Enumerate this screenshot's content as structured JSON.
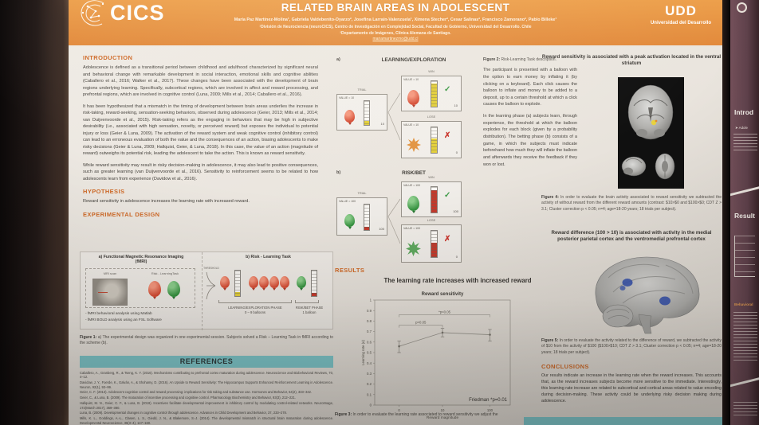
{
  "header": {
    "logo_text": "CICS",
    "title": "RELATED BRAIN AREAS IN ADOLESCENT",
    "authors": "María Paz Martínez-Molina¹, Gabriela Valdebenito-Oyarzo², Josefina Larraín-Valenzuela¹, Ximena Stecher², Cesar Salinas², Francisco Zamorano², Pablo Billeke¹",
    "affiliation1": "¹División de Neurociencia (neuroCICS), Centro de Investigación en Complejidad Social, Facultad de Gobierno, Universidad del Desarrollo. Chile",
    "affiliation2": "²Departamento de Imágenes, Clínica Alemana de Santiago.",
    "email": "mariamartinezmo@udd.cl",
    "university_acronym": "UDD",
    "university_name": "Universidad del Desarrollo"
  },
  "introduction": {
    "heading": "INTRODUCTION",
    "p1": "Adolescence is defined as a transitional period between childhood and adulthood characterized by significant neural and behavioral change with remarkable development in social interaction, emotional skills and cognitive abilities (Caballero et al., 2016; Walker et al., 2017). These changes have been associated with the development of brain regions underlying learning. Specifically, subcortical regions, which are involved in affect and reward processing, and prefrontal regions, which are involved in cognitive control (Luna, 2009; Mills et al., 2014; Caballero et al., 2016).",
    "p2": "It has been hypothesized that a mismatch in the timing of development between brain areas underlies the increase in risk-taking, reward-seeking, sensation-seeking behaviors, observed during adolescence (Geier, 2013; Mills et al., 2014; van Duijvenvoorde et al., 2015). Risk-taking refers as the engaging in behaviors that may be high in subjective desirability (i.e., associated with high sensation, novelty, or perceived reward) but exposes the individual to potential injury or loss (Geier & Luna, 2009). The activation of the reward system and weak cognitive control (inhibitory control) can lead to an erroneous evaluation of both the value and the consequences of an action, biasing adolescents to make risky decisions (Geier & Luna, 2009; Hallquist, Geier, & Luna, 2018). In this case, the value of an action (magnitude of reward) outweighs its potential risk, leading the adolescent to take the action. This is known as reward sensitivity.",
    "p3": "While reward sensitivity may result in risky decision-making in adolescence, it may also lead to positive consequences, such as greater learning (van Duijvenvoorde et al., 2016). Sensitivity to reinforcement seems to be related to how adolescents learn from experience (Davidow et al., 2016)."
  },
  "hypothesis": {
    "heading": "HYPOTHESIS",
    "text": "Reward sensitivity in adolescence increases the learning rate with increased reward."
  },
  "experimental_design": {
    "heading": "EXPERIMENTAL DESIGN",
    "panel_a_label": "a)",
    "panel_a_title": "Functional Magnetic Resonance Imaging",
    "panel_a_subtitle": "(fMRI)",
    "mri_label": "MRI scan",
    "task_label": "Risk - LearningTask",
    "bullet1": "- fMRI behavioral analysis using Matlab",
    "bullet2": "- fMRI BOLD analysis using an FSL Software",
    "panel_b_label": "b)",
    "panel_b_title": "Risk - Learning Task",
    "threshold_label": "THRESHOLD",
    "phase1_label": "LEARNING/EXPLORATION PHASE",
    "phase1_sub": "0 – 9 balloons",
    "phase2_label": "RISK/BET PHASE",
    "phase2_sub": "1 balloon",
    "figure1_prefix": "Figure 1:",
    "figure1_caption": "a) The experimental design was organized in one experimental session. Subjects solved a Risk – Learning Task in fMRI according to the scheme (b)."
  },
  "references": {
    "heading": "REFERENCES",
    "items": [
      "Caballero, A., Granberg, R., & Tseng, K. Y. (2016). Mechanisms contributing to prefrontal cortex maturation during adolescence. Neuroscience and Biobehavioral Reviews, 70, 4–12.",
      "Davidow, J. Y., Foerde, K., Galván, A., & Shohamy, D. (2016). An Upside to Reward Sensitivity: The Hippocampus Supports Enhanced Reinforcement Learning in Adolescence. Neuron, 92(1), 93–99.",
      "Geier, C. F. (2013). Adolescent cognitive control and reward processing: implications for risk taking and substance use. Hormones and Behavior, 64(2), 333–342.",
      "Geier, C., & Luna, B. (2009). The maturation of incentive processing and cognitive control. Pharmacology Biochemistry and Behavior, 93(3), 212–221.",
      "Hallquist, M. N., Geier, C. F., & Luna, B. (2018). Incentives facilitate developmental improvement in inhibitory control by modulating control-related networks. NeuroImage, 172(March 2017), 369–380.",
      "Luna, B. (2009). Developmental changes in cognitive control through adolescence. Advances in Child Development and Behavior, 37, 233–278.",
      "Mills, K. L., Goddings, A.-L., Clasen, L. S., Giedd, J. N., & Blakemore, S.-J. (2014). The developmental mismatch in structural brain maturation during adolescence. Developmental Neuroscience, 36(3–4), 147–160.",
      "van Duijvenvoorde, A. C. K., Peters, S., Braams, B. R., & Crone, E. A. (2016). What motivates adolescents? Neural responses to rewards and their influence on adolescents' risk taking, learning, and cognitive control."
    ]
  },
  "task_figure": {
    "a_label": "a)",
    "a_title": "LEARNING/EXPLORATION",
    "b_label": "b)",
    "b_title": "RISK/BET",
    "trial_label": "TRIAL",
    "win_label": "WIN",
    "lose_label": "LOSE",
    "a_value": "VALUE =  10",
    "a_deposit": "10",
    "a_win": "10",
    "a_lose": "0",
    "b_value": "VALUE = 100",
    "b_deposit": "100",
    "b_win": "100",
    "b_lose": "0",
    "check": "✓",
    "cross": "✗"
  },
  "figure2": {
    "prefix": "Figure 2:",
    "title": "Risk-Learning Task description.",
    "p1": "The participant is presented with a balloon with the option to earn money by inflating it (by clicking on a keyboard). Each click causes the balloon to inflate and money to be added to a deposit, up to a certain threshold at which a click causes the balloon to explode.",
    "p2": "In the learning phase (a) subjects learn, through experience, the threshold at which the balloon explodes for each block (given by a probability distribution). The betting phase (b) consists of a game, in which the subjects must indicate beforehand how much they will inflate the balloon and afterwards they receive the feedback if they won or lost."
  },
  "results": {
    "heading": "RESULTS",
    "chart_headline": "The learning rate increases with increased reward",
    "figure3_prefix": "Figure 3:",
    "figure3_caption": "In order to evaluate the learning rate associated to reward sensitivity we adjust the"
  },
  "chart_data": {
    "type": "line",
    "title": "Reward sensitivity",
    "xlabel": "Reward magnitude",
    "ylabel": "Learning rate (α)",
    "categories": [
      "0",
      "10",
      "100"
    ],
    "values": [
      0.56,
      0.69,
      0.67
    ],
    "error_low": [
      0.5,
      0.65,
      0.61
    ],
    "error_high": [
      0.61,
      0.73,
      0.72
    ],
    "ylim": [
      0,
      1
    ],
    "ytick_step": 0.1,
    "grid": false,
    "legend_position": "none",
    "significance": [
      {
        "from": 0,
        "to": 1,
        "y": 0.76,
        "label": "p<0.05"
      },
      {
        "from": 0,
        "to": 2,
        "y": 0.86,
        "label": "*p<0.05"
      }
    ],
    "note": "Friedman *p=0.01"
  },
  "findings": {
    "finding1_title": "Reward sensitivity is associated with a peak activation located in the ventral striatum",
    "figure4_prefix": "Figure 4:",
    "figure4_caption": "In order to evaluate the brain activity associated to reward sensitivity we subtracted the activity of without reward from the different reward amounts (contrast: $10>$0 and $100>$0; CDT Z > 3.1; Cluster correction p < 0.05; n=4; age=18-20 years; 18 trials per subject).",
    "finding2_title": "Reward difference (100 > 10) is associated with activity in the medial posterior parietal cortex and the ventromedial prefrontal cortex",
    "figure5_prefix": "Figure 5:",
    "figure5_caption": "In order to evaluate the activity related to the difference of reward, we subtracted the activity of $10 from the activity of $100 ($100>$10; CDT Z > 3.1; Cluster correction p < 0.05; n=4; age=18-20 years; 18 trials per subject)."
  },
  "conclusions": {
    "heading": "CONCLUSIONS",
    "text": "Our results indicate an increase in the learning rate when the reward increases. This accounts that, as the reward increases subjects become more sensitive to the immediate. Interestingly, this learning rate increase are related to subcortical and cortical areas related to value encoding during decision-making. These activity could be underlying risky decision making during adolescence."
  },
  "neighbor_poster": {
    "intro_heading": "Introd",
    "intro_bullet": "➤ Adole",
    "results_heading": "Result",
    "behavioral_heading": "Behavioral"
  }
}
